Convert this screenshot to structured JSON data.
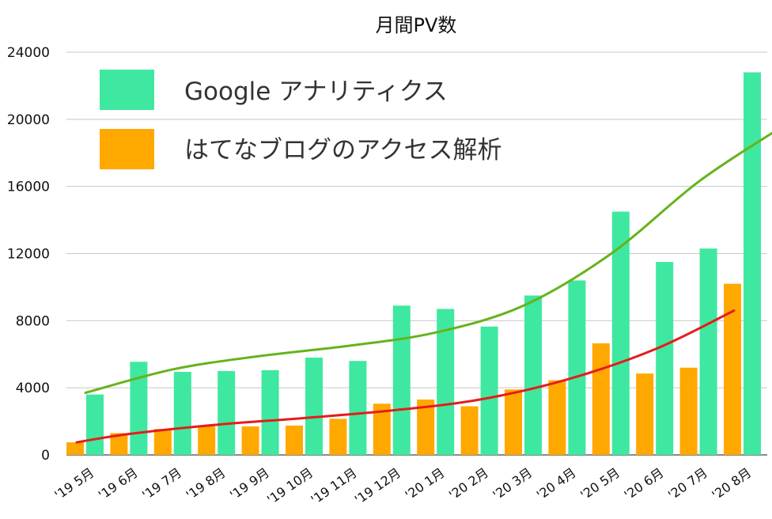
{
  "chart_data": {
    "type": "bar",
    "title": "月間PV数",
    "xlabel": "",
    "ylabel": "",
    "ylim": [
      0,
      24000
    ],
    "yticks": [
      0,
      4000,
      8000,
      12000,
      16000,
      20000,
      24000
    ],
    "grid": true,
    "legend_position": "top-left",
    "categories": [
      "'19 5月",
      "'19 6月",
      "'19 7月",
      "'19 8月",
      "'19 9月",
      "'19 10月",
      "'19 11月",
      "'19 12月",
      "'20 1月",
      "'20 2月",
      "'20 3月",
      "'20 4月",
      "'20 5月",
      "'20 6月",
      "'20 7月",
      "'20 8月"
    ],
    "series": [
      {
        "name": "はてなブログのアクセス解析",
        "color": "#ffa800",
        "values": [
          750,
          1300,
          1550,
          1700,
          1700,
          1750,
          2150,
          3050,
          3300,
          2900,
          3900,
          4450,
          6650,
          4850,
          5200,
          10200
        ]
      },
      {
        "name": "Google アナリティクス",
        "color": "#3fe8a0",
        "values": [
          3600,
          5550,
          4950,
          5000,
          5050,
          5800,
          5600,
          8900,
          8700,
          7650,
          9500,
          10400,
          14500,
          11500,
          12300,
          22800
        ]
      }
    ],
    "trendlines": [
      {
        "series": "Google アナリティクス",
        "color": "#66b31c",
        "x": [
          0,
          2,
          4,
          6,
          8,
          10,
          12,
          14,
          15.8
        ],
        "y": [
          3700,
          5100,
          5900,
          6500,
          7300,
          8900,
          12000,
          16300,
          19400
        ]
      },
      {
        "series": "はてなブログのアクセス解析",
        "color": "#e51c1c",
        "x": [
          -0.2,
          1,
          3,
          5,
          7,
          9,
          11,
          13,
          14.8
        ],
        "y": [
          750,
          1250,
          1800,
          2200,
          2650,
          3300,
          4500,
          6300,
          8600
        ]
      }
    ]
  }
}
